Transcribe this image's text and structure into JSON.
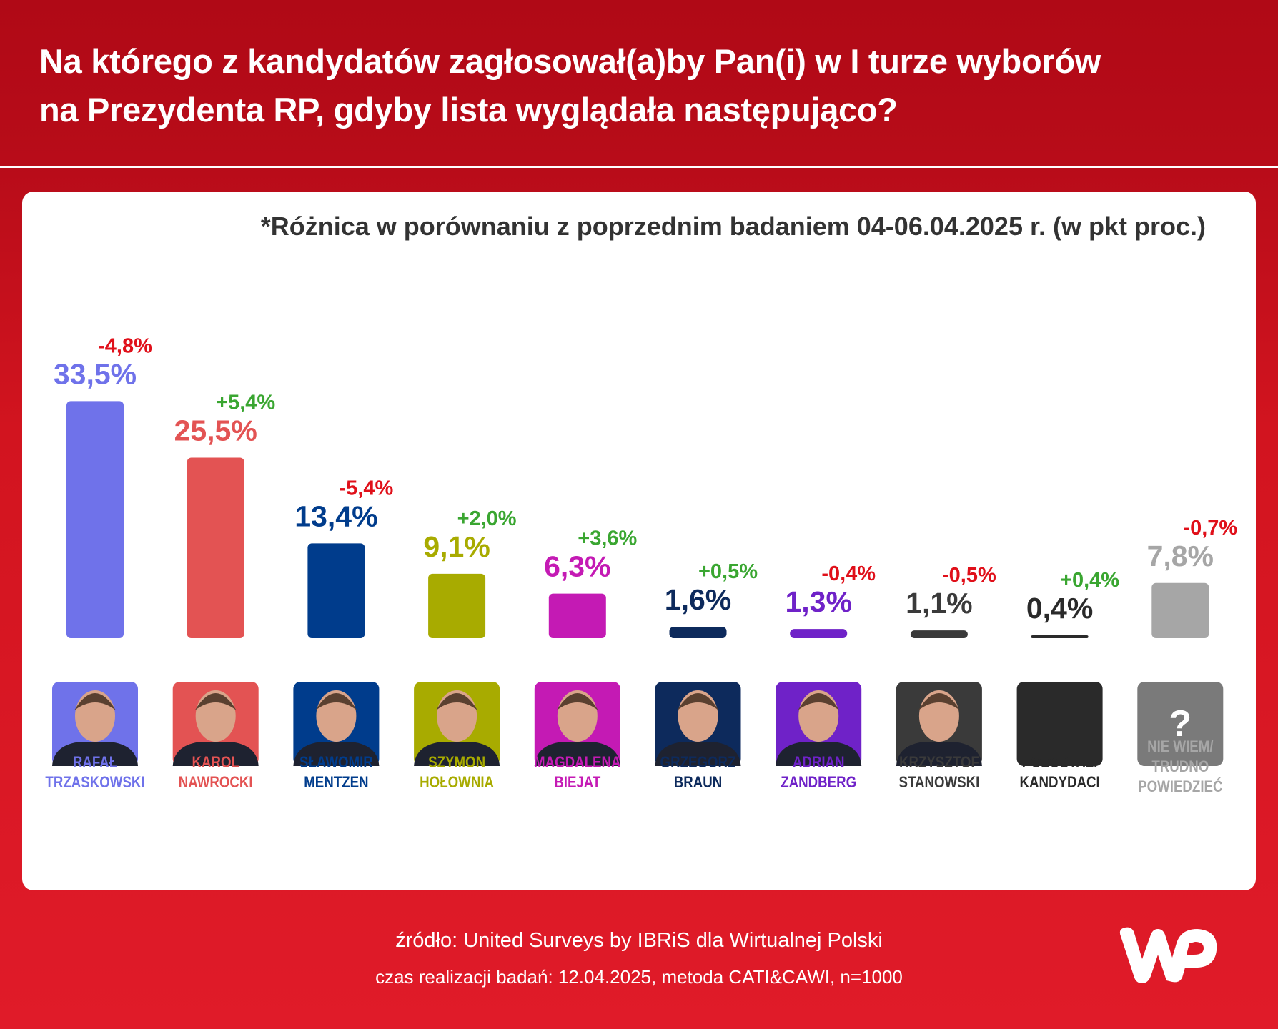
{
  "title_lines": [
    "Na którego z kandydatów zagłosował(a)by Pan(i) w I turze wyborów",
    "na Prezydenta RP, gdyby lista wyglądała następująco?"
  ],
  "note": "*Różnica w porównaniu z poprzednim badaniem 04-06.04.2025 r. (w pkt proc.)",
  "footer": {
    "source": "źródło: United Surveys by IBRiS dla Wirtualnej Polski",
    "method": "czas realizacji badań: 12.04.2025, metoda CATI&CAWI, n=1000"
  },
  "logo": "WP",
  "colors": {
    "positive": "#3aa631",
    "negative": "#e0101a",
    "header": "#b00916",
    "background": "#e01b29"
  },
  "chart_data": {
    "type": "bar",
    "unit": "%",
    "categories": [
      [
        "RAFAŁ",
        "TRZASKOWSKI"
      ],
      [
        "KAROL",
        "NAWROCKI"
      ],
      [
        "SŁAWOMIR",
        "MENTZEN"
      ],
      [
        "SZYMON",
        "HOŁOWNIA"
      ],
      [
        "MAGDALENA",
        "BIEJAT"
      ],
      [
        "GRZEGORZ",
        "BRAUN"
      ],
      [
        "ADRIAN",
        "ZANDBERG"
      ],
      [
        "KRZYSZTOF",
        "STANOWSKI"
      ],
      [
        "POZOSTALI",
        "KANDYDACI"
      ],
      [
        "NIE WIEM/",
        "TRUDNO",
        "POWIEDZIEĆ"
      ]
    ],
    "values": [
      33.5,
      25.5,
      13.4,
      9.1,
      6.3,
      1.6,
      1.3,
      1.1,
      0.4,
      7.8
    ],
    "value_labels": [
      "33,5%",
      "25,5%",
      "13,4%",
      "9,1%",
      "6,3%",
      "1,6%",
      "1,3%",
      "1,1%",
      "0,4%",
      "7,8%"
    ],
    "changes": [
      -4.8,
      5.4,
      -5.4,
      2.0,
      3.6,
      0.5,
      -0.4,
      -0.5,
      0.4,
      -0.7
    ],
    "change_labels": [
      "-4,8%",
      "+5,4%",
      "-5,4%",
      "+2,0%",
      "+3,6%",
      "+0,5%",
      "-0,4%",
      "-0,5%",
      "+0,4%",
      "-0,7%"
    ],
    "bar_colors": [
      "#6f72ea",
      "#e35353",
      "#003c8c",
      "#a8ab00",
      "#c41ab4",
      "#0d2a5c",
      "#6f22c8",
      "#3a3a3a",
      "#2a2a2a",
      "#a6a6a6"
    ],
    "label_colors": [
      "#6f72ea",
      "#e35353",
      "#003c8c",
      "#a8ab00",
      "#c41ab4",
      "#0d2a5c",
      "#6f22c8",
      "#3a3a3a",
      "#2a2a2a",
      "#a6a6a6"
    ],
    "photo_bg": [
      "#6f72ea",
      "#e35353",
      "#003c8c",
      "#a8ab00",
      "#c41ab4",
      "#0d2a5c",
      "#6f22c8",
      "#3a3a3a",
      "#2a2a2a",
      "#7a7a7a"
    ],
    "placeholder_icons": {
      "8": "blank",
      "9": "question-mark"
    },
    "question_mark": "?"
  }
}
